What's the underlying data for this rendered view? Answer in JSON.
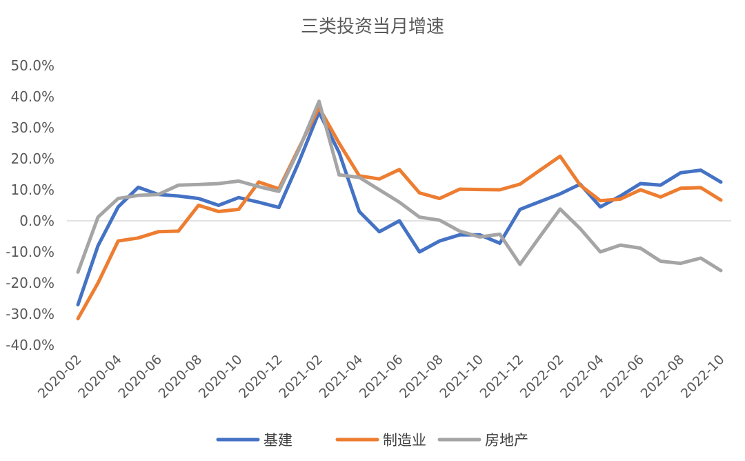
{
  "chart_data": {
    "type": "line",
    "title": "三类投资当月增速",
    "xlabel": "",
    "ylabel": "",
    "ylim": [
      -0.4,
      0.5
    ],
    "y_ticks": [
      "50.0%",
      "40.0%",
      "30.0%",
      "20.0%",
      "10.0%",
      "0.0%",
      "-10.0%",
      "-20.0%",
      "-30.0%",
      "-40.0%"
    ],
    "x_tick_labels": [
      "2020-02",
      "2020-04",
      "2020-06",
      "2020-08",
      "2020-10",
      "2020-12",
      "2021-02",
      "2021-04",
      "2021-06",
      "2021-08",
      "2021-10",
      "2021-12",
      "2022-02",
      "2022-04",
      "2022-06",
      "2022-08",
      "2022-10"
    ],
    "categories": [
      "2020-02",
      "2020-03",
      "2020-04",
      "2020-05",
      "2020-06",
      "2020-07",
      "2020-08",
      "2020-09",
      "2020-10",
      "2020-11",
      "2020-12",
      "2021-01",
      "2021-02",
      "2021-03",
      "2021-04",
      "2021-05",
      "2021-06",
      "2021-07",
      "2021-08",
      "2021-09",
      "2021-10",
      "2021-11",
      "2021-12",
      "2022-01",
      "2022-02",
      "2022-03",
      "2022-04",
      "2022-05",
      "2022-06",
      "2022-07",
      "2022-08",
      "2022-09",
      "2022-10"
    ],
    "series": [
      {
        "name": "基建",
        "color": "#4472C4",
        "values": [
          -0.27,
          -0.08,
          0.045,
          0.108,
          0.085,
          0.08,
          0.072,
          0.05,
          0.075,
          0.06,
          0.043,
          0.19,
          0.35,
          0.22,
          0.03,
          -0.035,
          0.0,
          -0.1,
          -0.065,
          -0.045,
          -0.045,
          -0.072,
          0.037,
          0.062,
          0.087,
          0.118,
          0.045,
          0.08,
          0.12,
          0.115,
          0.155,
          0.163,
          0.125
        ]
      },
      {
        "name": "制造业",
        "color": "#ED7D31",
        "values": [
          -0.315,
          -0.2,
          -0.065,
          -0.055,
          -0.035,
          -0.033,
          0.05,
          0.03,
          0.037,
          0.125,
          0.103,
          0.235,
          0.365,
          0.25,
          0.145,
          0.135,
          0.165,
          0.09,
          0.072,
          0.102,
          0.101,
          0.1,
          0.118,
          0.163,
          0.208,
          0.115,
          0.065,
          0.07,
          0.1,
          0.077,
          0.105,
          0.107,
          0.067
        ]
      },
      {
        "name": "房地产",
        "color": "#A5A5A5",
        "values": [
          -0.165,
          0.012,
          0.072,
          0.082,
          0.085,
          0.115,
          0.117,
          0.12,
          0.128,
          0.11,
          0.095,
          0.23,
          0.385,
          0.148,
          0.14,
          0.1,
          0.06,
          0.012,
          0.002,
          -0.033,
          -0.052,
          -0.043,
          -0.14,
          -0.05,
          0.038,
          -0.025,
          -0.1,
          -0.078,
          -0.088,
          -0.13,
          -0.137,
          -0.12,
          -0.16
        ]
      }
    ],
    "grid": false,
    "zero_line": true,
    "legend_position": "bottom"
  }
}
